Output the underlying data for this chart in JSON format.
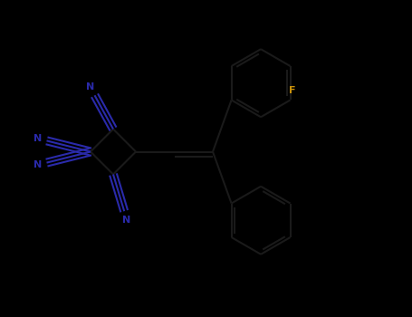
{
  "background_color": "#000000",
  "bond_color": "#1a1a1a",
  "cn_color": "#2a2aaa",
  "f_color": "#c8900a",
  "lw": 1.5,
  "figsize": [
    4.55,
    3.5
  ],
  "dpi": 100,
  "xlim": [
    0,
    9.1
  ],
  "ylim": [
    0,
    7.0
  ],
  "ring_color": "#1a1a1a",
  "cn_label_color": "#2a2aaa",
  "f_label_color": "#c8900a"
}
